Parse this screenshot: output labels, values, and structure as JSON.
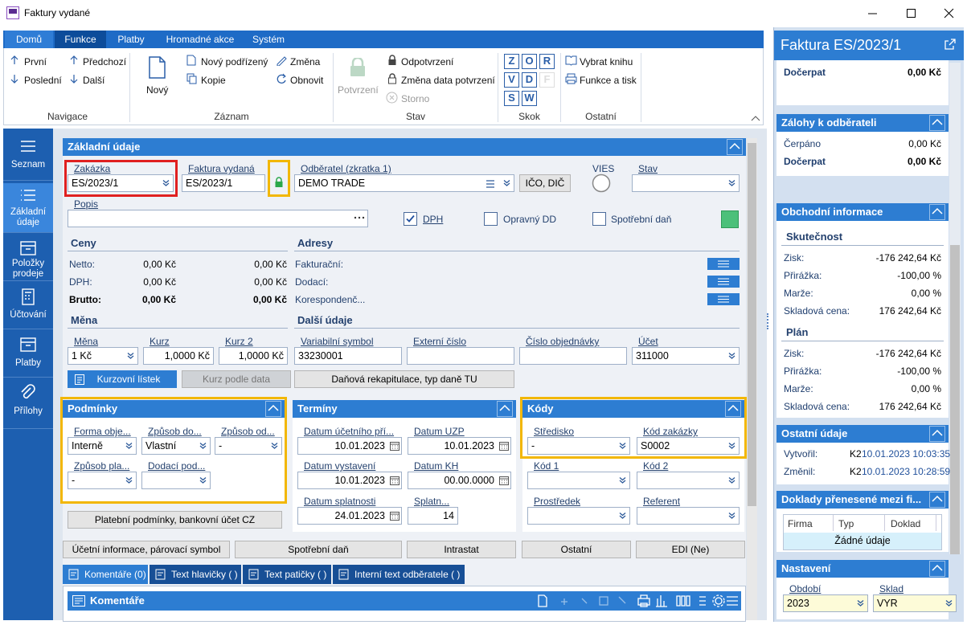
{
  "window": {
    "title": "Faktury vydané"
  },
  "ribbon": {
    "tabs": [
      "Domů",
      "Funkce",
      "Platby",
      "Hromadné akce",
      "Systém"
    ],
    "groups": [
      {
        "label": "Navigace",
        "items": [
          "První",
          "Předchozí",
          "Poslední",
          "Další"
        ]
      },
      {
        "label": "Záznam",
        "items": [
          "Nový",
          "Nový podřízený",
          "Změna",
          "Kopie",
          "Obnovit"
        ]
      },
      {
        "label": "Stav",
        "items": [
          "Potvrzení",
          "Odpotvrzení",
          "Změna data potvrzení",
          "Storno"
        ]
      },
      {
        "label": "Skok",
        "items": [
          "Z",
          "O",
          "R",
          "V",
          "D",
          "F",
          "S",
          "W"
        ]
      },
      {
        "label": "Ostatní",
        "items": [
          "Vybrat knihu",
          "Funkce a tisk"
        ]
      }
    ]
  },
  "nav": [
    "Seznam",
    "Základní údaje",
    "Položky prodeje",
    "Účtování",
    "Platby",
    "Přílohy"
  ],
  "form": {
    "title": "Základní údaje",
    "fields": [
      {
        "label": "Zakázka",
        "value": "ES/2023/1"
      },
      {
        "label": "Faktura vydaná",
        "value": "ES/2023/1"
      },
      {
        "label": "Odběratel (zkratka 1)",
        "value": "DEMO TRADE"
      },
      {
        "label": "VIES"
      },
      {
        "label": "Stav"
      },
      {
        "label": "Popis"
      }
    ],
    "ico_button": "IČO, DIČ",
    "checkboxes": [
      {
        "label": "DPH",
        "checked": true
      },
      {
        "label": "Opravný DD",
        "checked": false
      },
      {
        "label": "Spotřební daň",
        "checked": false
      }
    ],
    "ceny": {
      "title": "Ceny",
      "rows": [
        {
          "label": "Netto:",
          "values": [
            "0,00 Kč",
            "0,00 Kč"
          ]
        },
        {
          "label": "DPH:",
          "values": [
            "0,00 Kč",
            "0,00 Kč"
          ]
        },
        {
          "label": "Brutto:",
          "values": [
            "0,00 Kč",
            "0,00 Kč"
          ]
        }
      ]
    },
    "adresy": {
      "title": "Adresy",
      "rows": [
        "Fakturační:",
        "Dodací:",
        "Korespondenč..."
      ]
    },
    "mena": {
      "title": "Měna",
      "fields": [
        {
          "label": "Měna",
          "value": "1 Kč"
        },
        {
          "label": "Kurz",
          "value": "1,0000 Kč"
        },
        {
          "label": "Kurz 2",
          "value": "1,0000 Kč"
        }
      ],
      "buttons": [
        "Kurzovní lístek",
        "Kurz podle data"
      ]
    },
    "dalsi": {
      "title": "Další údaje",
      "fields": [
        {
          "label": "Variabilní symbol",
          "value": "33230001"
        },
        {
          "label": "Externí číslo"
        },
        {
          "label": "Číslo objednávky"
        },
        {
          "label": "Účet",
          "value": "311000"
        }
      ],
      "button": "Daňová rekapitulace, typ daně TU"
    },
    "podminky": {
      "title": "Podmínky",
      "fields": [
        {
          "label": "Forma obje...",
          "value": "Interně"
        },
        {
          "label": "Způsob do...",
          "value": "Vlastní"
        },
        {
          "label": "Způsob od...",
          "value": "-"
        },
        {
          "label": "Způsob pla...",
          "value": "-"
        },
        {
          "label": "Dodací pod..."
        }
      ],
      "button": "Platební podmínky, bankovní účet CZ"
    },
    "terminy": {
      "title": "Termíny",
      "fields": [
        {
          "label": "Datum účetního pří...",
          "value": "10.01.2023"
        },
        {
          "label": "Datum UZP",
          "value": "10.01.2023"
        },
        {
          "label": "Datum vystavení",
          "value": "10.01.2023"
        },
        {
          "label": "Datum KH",
          "value": "00.00.0000"
        },
        {
          "label": "Datum splatnosti",
          "value": "24.01.2023"
        },
        {
          "label": "Splatn...",
          "value": "14"
        }
      ]
    },
    "kody": {
      "title": "Kódy",
      "fields": [
        {
          "label": "Středisko",
          "value": "-"
        },
        {
          "label": "Kód zakázky",
          "value": "S0002"
        },
        {
          "label": "Kód 1"
        },
        {
          "label": "Kód 2"
        },
        {
          "label": "Prostředek"
        },
        {
          "label": "Referent"
        }
      ]
    },
    "bottom_buttons": [
      "Účetní informace, párovací symbol",
      "Spotřební daň",
      "Intrastat",
      "Ostatní",
      "EDI (Ne)"
    ],
    "tabs": [
      "Komentáře (0)",
      "Text hlavičky ( )",
      "Text patičky ( )",
      "Interní text odběratele ( )"
    ],
    "comments_title": "Komentáře"
  },
  "side": {
    "title": "Faktura ES/2023/1",
    "top": {
      "label": "Dočerpat",
      "value": "0,00 Kč"
    },
    "zalohy": {
      "title": "Zálohy k odběrateli",
      "rows": [
        {
          "label": "Čerpáno",
          "value": "0,00 Kč"
        },
        {
          "label": "Dočerpat",
          "value": "0,00 Kč"
        }
      ]
    },
    "obchodni": {
      "title": "Obchodní informace",
      "groups": [
        {
          "title": "Skutečnost",
          "rows": [
            {
              "label": "Zisk:",
              "value": "-176 242,64 Kč"
            },
            {
              "label": "Přirážka:",
              "value": "-100,00 %"
            },
            {
              "label": "Marže:",
              "value": "0,00 %"
            },
            {
              "label": "Skladová cena:",
              "value": "176 242,64 Kč"
            }
          ]
        },
        {
          "title": "Plán",
          "rows": [
            {
              "label": "Zisk:",
              "value": "-176 242,64 Kč"
            },
            {
              "label": "Přirážka:",
              "value": "-100,00 %"
            },
            {
              "label": "Marže:",
              "value": "0,00 %"
            },
            {
              "label": "Skladová cena:",
              "value": "176 242,64 Kč"
            }
          ]
        }
      ]
    },
    "ostatni": {
      "title": "Ostatní údaje",
      "rows": [
        {
          "label": "Vytvořil:",
          "user": "K2",
          "date": "10.01.2023 10:03:35"
        },
        {
          "label": "Změnil:",
          "user": "K2",
          "date": "10.01.2023 10:28:59"
        }
      ]
    },
    "doklady": {
      "title": "Doklady přenesené mezi fi...",
      "columns": [
        "Firma",
        "Typ",
        "Doklad"
      ],
      "empty": "Žádné údaje"
    },
    "nastaveni": {
      "title": "Nastavení",
      "fields": [
        {
          "label": "Období",
          "value": "2023"
        },
        {
          "label": "Sklad",
          "value": "VYR"
        }
      ]
    }
  }
}
